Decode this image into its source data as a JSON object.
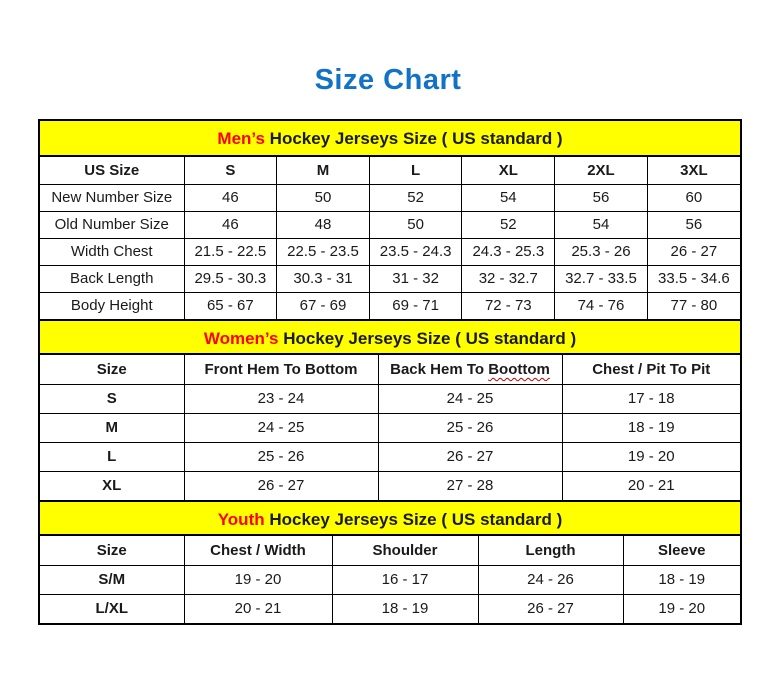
{
  "page": {
    "title": "Size Chart"
  },
  "colors": {
    "title_blue": "#1273C6",
    "band_yellow": "#FFFF00",
    "highlight_red": "#FF0000",
    "squiggle_red": "#C00000",
    "border_black": "#000000"
  },
  "chart_data": [
    {
      "type": "table",
      "title_highlight": "Men’s",
      "title_rest": " Hockey Jerseys Size ( US standard )",
      "columns": [
        "US Size",
        "S",
        "M",
        "L",
        "XL",
        "2XL",
        "3XL"
      ],
      "rows": [
        {
          "label": "New Number Size",
          "values": [
            "46",
            "50",
            "52",
            "54",
            "56",
            "60"
          ]
        },
        {
          "label": "Old Number Size",
          "values": [
            "46",
            "48",
            "50",
            "52",
            "54",
            "56"
          ]
        },
        {
          "label": "Width Chest",
          "values": [
            "21.5 - 22.5",
            "22.5 - 23.5",
            "23.5 - 24.3",
            "24.3 - 25.3",
            "25.3 - 26",
            "26 - 27"
          ]
        },
        {
          "label": "Back Length",
          "values": [
            "29.5 - 30.3",
            "30.3 - 31",
            "31 - 32",
            "32 - 32.7",
            "32.7 - 33.5",
            "33.5 - 34.6"
          ]
        },
        {
          "label": "Body Height",
          "values": [
            "65 - 67",
            "67 - 69",
            "69 - 71",
            "72 - 73",
            "74 - 76",
            "77 - 80"
          ]
        }
      ]
    },
    {
      "type": "table",
      "title_highlight": "Women’s",
      "title_rest": " Hockey Jerseys Size ( US standard )",
      "columns": [
        "Size",
        "Front Hem To Bottom",
        "Back Hem To Boottom",
        "Chest / Pit To Pit"
      ],
      "squiggle": {
        "column": 2,
        "word": "Boottom"
      },
      "rows": [
        {
          "label": "S",
          "values": [
            "23 - 24",
            "24 - 25",
            "17 - 18"
          ]
        },
        {
          "label": "M",
          "values": [
            "24 - 25",
            "25 - 26",
            "18 - 19"
          ]
        },
        {
          "label": "L",
          "values": [
            "25 - 26",
            "26 - 27",
            "19 - 20"
          ]
        },
        {
          "label": "XL",
          "values": [
            "26 - 27",
            "27 - 28",
            "20 - 21"
          ]
        }
      ]
    },
    {
      "type": "table",
      "title_highlight": "Youth",
      "title_rest": " Hockey Jerseys Size ( US standard )",
      "columns": [
        "Size",
        "Chest / Width",
        "Shoulder",
        "Length",
        "Sleeve"
      ],
      "rows": [
        {
          "label": "S/M",
          "values": [
            "19 - 20",
            "16 - 17",
            "24 - 26",
            "18 - 19"
          ]
        },
        {
          "label": "L/XL",
          "values": [
            "20 - 21",
            "18 - 19",
            "26 - 27",
            "19 - 20"
          ]
        }
      ]
    }
  ]
}
